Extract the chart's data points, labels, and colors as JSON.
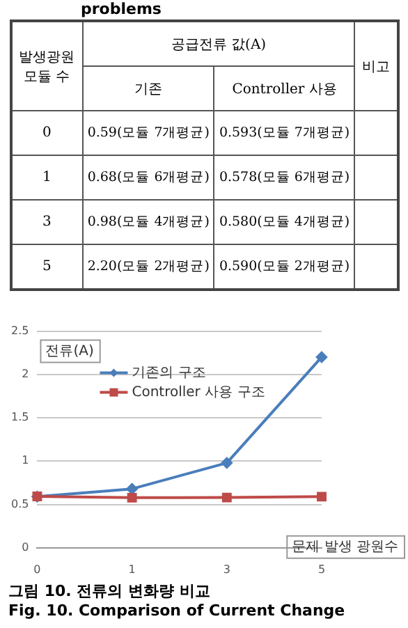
{
  "chart_data": {
    "type": "line",
    "ylabel": "전류(A)",
    "xlabel": "문제 발생 광원수",
    "categories": [
      "0",
      "1",
      "3",
      "5"
    ],
    "series": [
      {
        "name": "기존의 구조",
        "color": "#4a7ebb",
        "values": [
          0.59,
          0.68,
          0.98,
          2.2
        ],
        "marker": "diamond"
      },
      {
        "name": "Controller 사용 구조",
        "color": "#be4b48",
        "values": [
          0.593,
          0.578,
          0.58,
          0.59
        ],
        "marker": "square"
      }
    ],
    "ylim": [
      0,
      2.5
    ],
    "yticks": [
      0,
      0.5,
      1,
      1.5,
      2,
      2.5
    ],
    "grid": "y",
    "legend": "top left",
    "line_style": "solid",
    "annotations": [
      "problems",
      "발생광원 모듈 수",
      "공급전류 값(A)",
      "비고",
      "기존",
      "Controller 사용",
      "0.59(모듈 7개평균)",
      "0.593(모듈 7개평균)",
      "0.68(모듈 6개평균)",
      "0.578(모듈 6개평균)",
      "0.98(모듈 4개평균)",
      "0.580(모듈 4개평균)",
      "2.20(모듈 2개평균)",
      "0.590(모듈 2개평균)",
      "그림 10. 전류의 변화량 비교",
      "Fig. 10. Comparison of Current Change"
    ]
  }
}
